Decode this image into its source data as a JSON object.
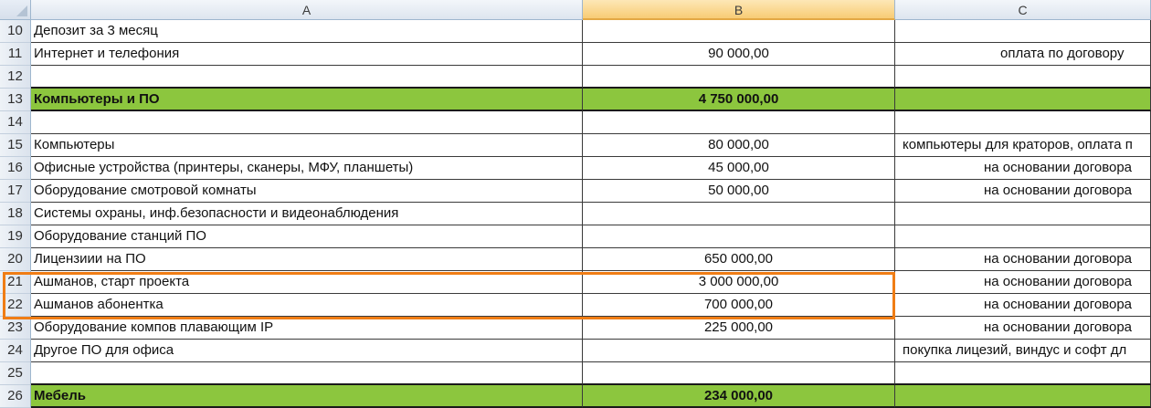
{
  "columns": [
    "A",
    "B",
    "C"
  ],
  "selected_column": "B",
  "highlight_color": "#f07d15",
  "group_color": "#8cc63e",
  "rows": [
    {
      "num": "10",
      "a": "Депозит за 3 месяц",
      "b": "",
      "c": "",
      "group": false
    },
    {
      "num": "11",
      "a": "Интернет и телефония",
      "b": "90 000,00",
      "c": "оплата по договору",
      "group": false
    },
    {
      "num": "12",
      "a": "",
      "b": "",
      "c": "",
      "group": false
    },
    {
      "num": "13",
      "a": "Компьютеры и ПО",
      "b": "4 750 000,00",
      "c": "",
      "group": true
    },
    {
      "num": "14",
      "a": "",
      "b": "",
      "c": "",
      "group": false
    },
    {
      "num": "15",
      "a": "Компьютеры",
      "b": "80 000,00",
      "c": "компьютеры для краторов, оплата п",
      "group": false
    },
    {
      "num": "16",
      "a": "Офисные устройства (принтеры, сканеры, МФУ, планшеты)",
      "b": "45 000,00",
      "c": "на основании договора",
      "group": false
    },
    {
      "num": "17",
      "a": "Оборудование смотровой комнаты",
      "b": "50 000,00",
      "c": "на основании договора",
      "group": false
    },
    {
      "num": "18",
      "a": "Системы охраны, инф.безопасности и видеонаблюдения",
      "b": "",
      "c": "",
      "group": false
    },
    {
      "num": "19",
      "a": "Оборудование станций ПО",
      "b": "",
      "c": "",
      "group": false
    },
    {
      "num": "20",
      "a": "Лицензиии на ПО",
      "b": "650 000,00",
      "c": "на основании договора",
      "group": false
    },
    {
      "num": "21",
      "a": "Ашманов, старт проекта",
      "b": "3 000 000,00",
      "c": "на основании договора",
      "group": false
    },
    {
      "num": "22",
      "a": "Ашманов абонентка",
      "b": "700 000,00",
      "c": "на основании договора",
      "group": false
    },
    {
      "num": "23",
      "a": "Оборудование компов плавающим IP",
      "b": "225 000,00",
      "c": "на основании договора",
      "group": false
    },
    {
      "num": "24",
      "a": "Другое ПО для офиса",
      "b": "",
      "c": "покупка лицезий, виндус и софт дл",
      "group": false
    },
    {
      "num": "25",
      "a": "",
      "b": "",
      "c": "",
      "group": false
    },
    {
      "num": "26",
      "a": "Мебель",
      "b": "234 000,00",
      "c": "",
      "group": true
    }
  ]
}
